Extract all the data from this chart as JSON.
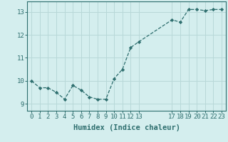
{
  "x": [
    0,
    1,
    2,
    3,
    4,
    5,
    6,
    7,
    8,
    9,
    10,
    11,
    12,
    13,
    17,
    18,
    19,
    20,
    21,
    22,
    23
  ],
  "y": [
    10.0,
    9.7,
    9.7,
    9.5,
    9.2,
    9.8,
    9.6,
    9.3,
    9.2,
    9.2,
    10.1,
    10.5,
    11.45,
    11.7,
    12.65,
    12.55,
    13.1,
    13.1,
    13.05,
    13.1,
    13.1
  ],
  "xticks": [
    0,
    1,
    2,
    3,
    4,
    5,
    6,
    7,
    8,
    9,
    10,
    11,
    12,
    13,
    17,
    18,
    19,
    20,
    21,
    22,
    23
  ],
  "yticks": [
    9,
    10,
    11,
    12,
    13
  ],
  "ylim": [
    8.7,
    13.45
  ],
  "xlim": [
    -0.5,
    23.5
  ],
  "xlabel": "Humidex (Indice chaleur)",
  "line_color": "#2d6e6e",
  "marker": "D",
  "marker_size": 2.2,
  "bg_color": "#d4eeee",
  "grid_color": "#b8d8d8",
  "axis_color": "#2d6e6e",
  "tick_color": "#2d6e6e",
  "label_color": "#2d6e6e",
  "tick_fontsize": 6.5,
  "xlabel_fontsize": 7.5
}
